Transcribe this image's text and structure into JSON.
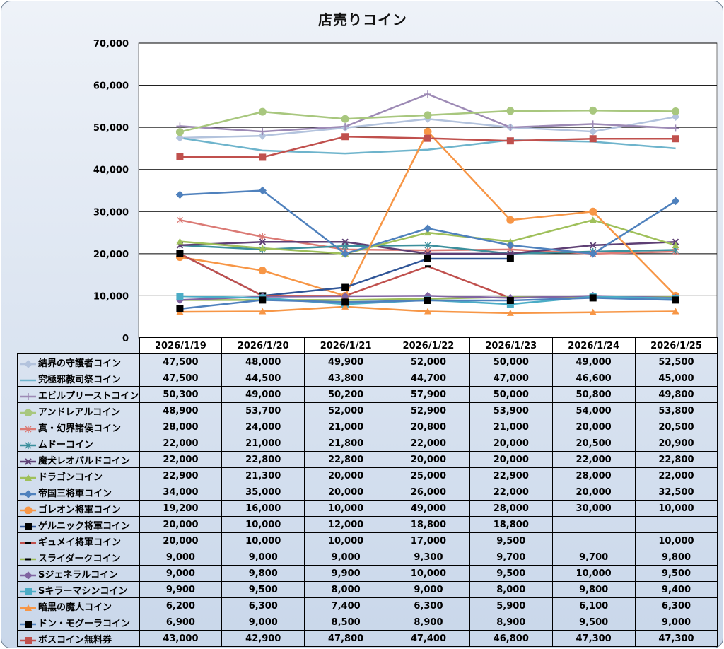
{
  "chart_data": {
    "type": "line",
    "title": "店売りコイン",
    "categories": [
      "2026/1/19",
      "2026/1/20",
      "2026/1/21",
      "2026/1/22",
      "2026/1/23",
      "2026/1/24",
      "2026/1/25"
    ],
    "ylim": [
      0,
      70000
    ],
    "yticks": [
      0,
      10000,
      20000,
      30000,
      40000,
      50000,
      60000,
      70000
    ],
    "ytick_labels": [
      "0",
      "10,000",
      "20,000",
      "30,000",
      "40,000",
      "50,000",
      "60,000",
      "70,000"
    ],
    "grid": true,
    "legend": "data table below chart",
    "series": [
      {
        "name": "結界の守護者コイン",
        "color": "#b3c3dd",
        "marker": "diamond",
        "values": [
          47500,
          48000,
          49900,
          52000,
          50000,
          49000,
          52500
        ],
        "labels": [
          "47,500",
          "48,000",
          "49,900",
          "52,000",
          "50,000",
          "49,000",
          "52,500"
        ]
      },
      {
        "name": "究極邪教司祭コイン",
        "color": "#6eb4cc",
        "marker": "none",
        "values": [
          47500,
          44500,
          43800,
          44700,
          47000,
          46600,
          45000
        ],
        "labels": [
          "47,500",
          "44,500",
          "43,800",
          "44,700",
          "47,000",
          "46,600",
          "45,000"
        ]
      },
      {
        "name": "エビルプリーストコイン",
        "color": "#9d8ab5",
        "marker": "plus",
        "values": [
          50300,
          49000,
          50200,
          57900,
          50000,
          50800,
          49800
        ],
        "labels": [
          "50,300",
          "49,000",
          "50,200",
          "57,900",
          "50,000",
          "50,800",
          "49,800"
        ]
      },
      {
        "name": "アンドレアルコイン",
        "color": "#a8c77e",
        "marker": "circle",
        "values": [
          48900,
          53700,
          52000,
          52900,
          53900,
          54000,
          53800
        ],
        "labels": [
          "48,900",
          "53,700",
          "52,000",
          "52,900",
          "53,900",
          "54,000",
          "53,800"
        ]
      },
      {
        "name": "真・幻界諸侯コイン",
        "color": "#db7a75",
        "marker": "star",
        "values": [
          28000,
          24000,
          21000,
          20800,
          21000,
          20000,
          20500
        ],
        "labels": [
          "28,000",
          "24,000",
          "21,000",
          "20,800",
          "21,000",
          "20,000",
          "20,500"
        ]
      },
      {
        "name": "ムドーコイン",
        "color": "#3b8f9c",
        "marker": "star",
        "values": [
          22000,
          21000,
          21800,
          22000,
          20000,
          20500,
          20900
        ],
        "labels": [
          "22,000",
          "21,000",
          "21,800",
          "22,000",
          "20,000",
          "20,500",
          "20,900"
        ]
      },
      {
        "name": "魔犬レオパルドコイン",
        "color": "#5e3f74",
        "marker": "x",
        "values": [
          22000,
          22800,
          22800,
          20000,
          20000,
          22000,
          22800
        ],
        "labels": [
          "22,000",
          "22,800",
          "22,800",
          "20,000",
          "20,000",
          "22,000",
          "22,800"
        ]
      },
      {
        "name": "ドラゴンコイン",
        "color": "#9fc05a",
        "marker": "triangle",
        "values": [
          22900,
          21300,
          20000,
          25000,
          22900,
          28000,
          22000
        ],
        "labels": [
          "22,900",
          "21,300",
          "20,000",
          "25,000",
          "22,900",
          "28,000",
          "22,000"
        ]
      },
      {
        "name": "帝国三将軍コイン",
        "color": "#4f81bd",
        "marker": "diamond",
        "values": [
          34000,
          35000,
          20000,
          26000,
          22000,
          20000,
          32500
        ],
        "labels": [
          "34,000",
          "35,000",
          "20,000",
          "26,000",
          "22,000",
          "20,000",
          "32,500"
        ]
      },
      {
        "name": "ゴレオン将軍コイン",
        "color": "#f79646",
        "marker": "circle",
        "values": [
          19200,
          16000,
          10000,
          49000,
          28000,
          30000,
          10000
        ],
        "labels": [
          "19,200",
          "16,000",
          "10,000",
          "49,000",
          "28,000",
          "30,000",
          "10,000"
        ]
      },
      {
        "name": "ゲルニック将軍コイン",
        "color": "#2f5597",
        "marker": "square-black",
        "values": [
          20000,
          10000,
          12000,
          18800,
          18800,
          null,
          null
        ],
        "labels": [
          "20,000",
          "10,000",
          "12,000",
          "18,800",
          "18,800",
          "",
          ""
        ]
      },
      {
        "name": "ギュメイ将軍コイン",
        "color": "#c0504d",
        "marker": "dash-black",
        "values": [
          20000,
          10000,
          10000,
          17000,
          9500,
          null,
          10000
        ],
        "labels": [
          "20,000",
          "10,000",
          "10,000",
          "17,000",
          "9,500",
          "",
          "10,000"
        ]
      },
      {
        "name": "スライダークコイン",
        "color": "#9bbb59",
        "marker": "dash-black",
        "values": [
          9000,
          9000,
          9000,
          9300,
          9700,
          9700,
          9800
        ],
        "labels": [
          "9,000",
          "9,000",
          "9,000",
          "9,300",
          "9,700",
          "9,700",
          "9,800"
        ]
      },
      {
        "name": "Sジェネラルコイン",
        "color": "#8064a2",
        "marker": "diamond",
        "values": [
          9000,
          9800,
          9900,
          10000,
          9500,
          10000,
          9500
        ],
        "labels": [
          "9,000",
          "9,800",
          "9,900",
          "10,000",
          "9,500",
          "10,000",
          "9,500"
        ]
      },
      {
        "name": "Sキラーマシンコイン",
        "color": "#4bacc6",
        "marker": "square",
        "values": [
          9900,
          9500,
          8000,
          9000,
          8000,
          9800,
          9400
        ],
        "labels": [
          "9,900",
          "9,500",
          "8,000",
          "9,000",
          "8,000",
          "9,800",
          "9,400"
        ]
      },
      {
        "name": "暗黒の魔人コイン",
        "color": "#f79646",
        "marker": "triangle",
        "values": [
          6200,
          6300,
          7400,
          6300,
          5900,
          6100,
          6300
        ],
        "labels": [
          "6,200",
          "6,300",
          "7,400",
          "6,300",
          "5,900",
          "6,100",
          "6,300"
        ]
      },
      {
        "name": "ドン・モグーラコイン",
        "color": "#4f81bd",
        "marker": "square-black",
        "values": [
          6900,
          9000,
          8500,
          8900,
          8900,
          9500,
          9000
        ],
        "labels": [
          "6,900",
          "9,000",
          "8,500",
          "8,900",
          "8,900",
          "9,500",
          "9,000"
        ]
      },
      {
        "name": "ボスコイン無料券",
        "color": "#c0504d",
        "marker": "square",
        "values": [
          43000,
          42900,
          47800,
          47400,
          46800,
          47300,
          47300
        ],
        "labels": [
          "43,000",
          "42,900",
          "47,800",
          "47,400",
          "46,800",
          "47,300",
          "47,300"
        ]
      }
    ]
  }
}
